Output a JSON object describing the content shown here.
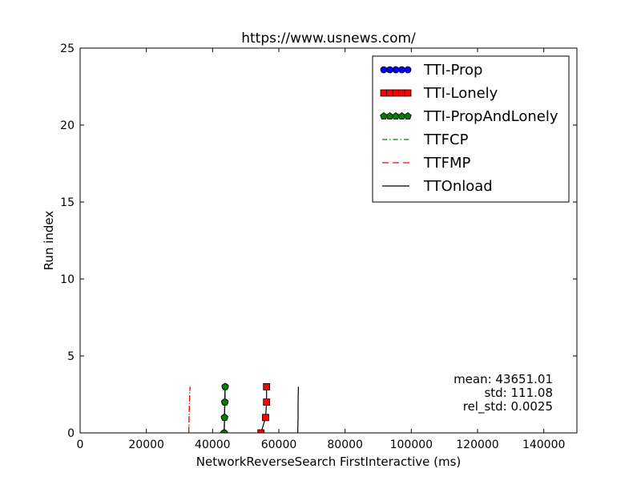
{
  "chart_data": {
    "type": "line",
    "title": "https://www.usnews.com/",
    "xlabel": "NetworkReverseSearch FirstInteractive (ms)",
    "ylabel": "Run index",
    "xlim": [
      0,
      150000
    ],
    "ylim": [
      0,
      25
    ],
    "xticks": [
      0,
      20000,
      40000,
      60000,
      80000,
      100000,
      120000,
      140000
    ],
    "yticks": [
      0,
      5,
      10,
      15,
      20,
      25
    ],
    "grid": false,
    "legend_position": "top-right",
    "series": [
      {
        "name": "TTI-Prop",
        "style": "marker-line",
        "marker": "circle",
        "color": "#0000ff",
        "x": [
          43500,
          43600,
          43700,
          43800
        ],
        "y": [
          0,
          1,
          2,
          3
        ]
      },
      {
        "name": "TTI-Lonely",
        "style": "marker-line",
        "marker": "square",
        "color": "#ff0000",
        "x": [
          54600,
          56000,
          56300,
          56300
        ],
        "y": [
          0,
          1,
          2,
          3
        ]
      },
      {
        "name": "TTI-PropAndLonely",
        "style": "marker-line",
        "marker": "pentagon",
        "color": "#008000",
        "x": [
          43500,
          43600,
          43700,
          43800
        ],
        "y": [
          0,
          1,
          2,
          3
        ]
      },
      {
        "name": "TTFCP",
        "style": "dashdot",
        "color": "#008000",
        "x": [
          32800,
          32900,
          33000,
          33200
        ],
        "y": [
          0,
          1,
          2,
          3
        ]
      },
      {
        "name": "TTFMP",
        "style": "dashed",
        "color": "#ff0000",
        "x": [
          32800,
          32900,
          33000,
          33200
        ],
        "y": [
          0,
          1,
          2,
          3
        ]
      },
      {
        "name": "TTOnload",
        "style": "solid",
        "color": "#000000",
        "x": [
          65700,
          65800,
          65800,
          65900
        ],
        "y": [
          0,
          1,
          2,
          3
        ]
      }
    ],
    "annotations": [
      "mean: 43651.01",
      "std: 111.08",
      "rel_std: 0.0025"
    ]
  }
}
